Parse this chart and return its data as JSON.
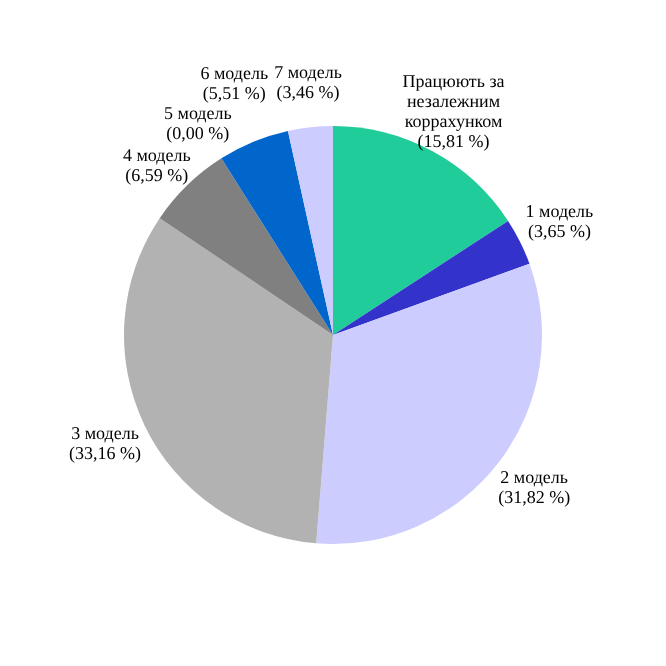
{
  "chart_data": {
    "type": "pie",
    "categories": [
      "Працюють за незалежним коррахунком",
      "1 модель",
      "2 модель",
      "3 модель",
      "4 модель",
      "5 модель",
      "6 модель",
      "7 модель"
    ],
    "values": [
      15.81,
      3.65,
      31.82,
      33.16,
      6.59,
      0,
      5.51,
      3.46
    ],
    "value_labels": [
      "(15,81 %)",
      "(3,65 %)",
      "(31,82 %)",
      "(33,16 %)",
      "(6,59 %)",
      "(0,00 %)",
      "(5,51 %)",
      "(3,46 %)"
    ],
    "colors": [
      "#20cc99",
      "#3333cc",
      "#ccccff",
      "#b2b2b2",
      "#808080",
      "#999999",
      "#0066cc",
      "#ccccff"
    ],
    "legend": false
  }
}
